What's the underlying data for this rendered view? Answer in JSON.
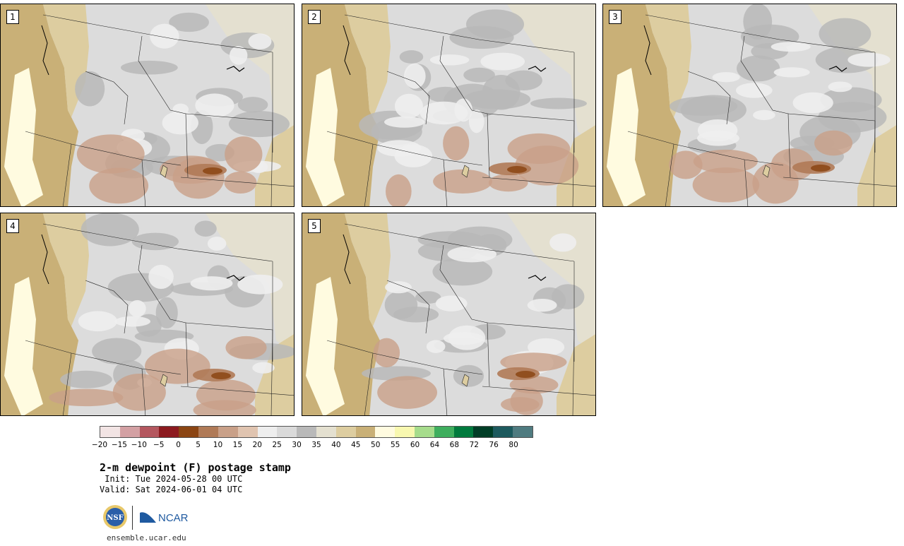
{
  "panels": [
    {
      "label": "1"
    },
    {
      "label": "2"
    },
    {
      "label": "3"
    },
    {
      "label": "4"
    },
    {
      "label": "5"
    }
  ],
  "colorbar": {
    "colors": [
      "#f2e4e4",
      "#d3a0a3",
      "#b4575f",
      "#8c1a1f",
      "#8b4513",
      "#b07a57",
      "#c9a088",
      "#e0c4b0",
      "#eeeeee",
      "#dadada",
      "#b9b9b9",
      "#e4e0d0",
      "#ddcda0",
      "#c9b077",
      "#fffbe0",
      "#f8f8b0",
      "#a6dc8c",
      "#3fae5e",
      "#007a3d",
      "#003d26",
      "#1d5a5e",
      "#4f7b80"
    ],
    "tick_labels": [
      "−20",
      "−15",
      "−10",
      "−5",
      "0",
      "5",
      "10",
      "15",
      "20",
      "25",
      "30",
      "35",
      "40",
      "45",
      "50",
      "55",
      "60",
      "64",
      "68",
      "72",
      "76",
      "80"
    ]
  },
  "title": "2-m dewpoint (F) postage stamp",
  "init": " Init: Tue 2024-05-28 00 UTC",
  "valid": "Valid: Sat 2024-06-01 04 UTC",
  "logos": {
    "nsf": "NSF",
    "ncar": "NCAR"
  },
  "url": "ensemble.ucar.edu"
}
